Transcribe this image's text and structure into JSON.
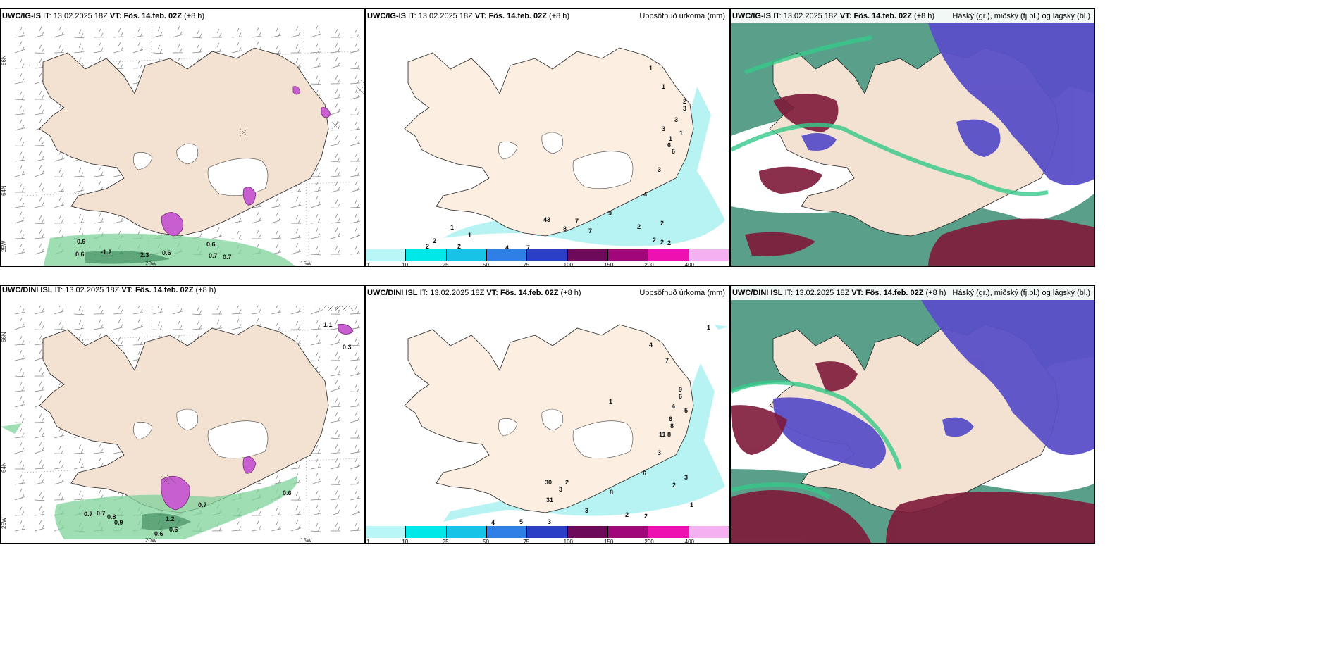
{
  "panels": [
    {
      "id": "p1",
      "model": "UWC/IG-IS",
      "it_prefix": "IT:",
      "it": "13.02.2025 18Z",
      "vt_prefix": "VT:",
      "vt": "Fös. 14.feb. 02Z",
      "lead": "(+8 h)",
      "right": ""
    },
    {
      "id": "p2",
      "model": "UWC/IG-IS",
      "it_prefix": "IT:",
      "it": "13.02.2025 18Z",
      "vt_prefix": "VT:",
      "vt": "Fös. 14.feb. 02Z",
      "lead": "(+8 h)",
      "right": "Uppsöfnuð úrkoma (mm)"
    },
    {
      "id": "p3",
      "model": "UWC/IG-IS",
      "it_prefix": "IT:",
      "it": "13.02.2025 18Z",
      "vt_prefix": "VT:",
      "vt": "Fös. 14.feb. 02Z",
      "lead": "(+8 h)",
      "right": "Háský (gr.), miðský (fj.bl.) og lágský (bl.)"
    },
    {
      "id": "p4",
      "model": "UWC/DINI ISL",
      "it_prefix": "IT:",
      "it": "13.02.2025 18Z",
      "vt_prefix": "VT:",
      "vt": "Fös. 14.feb. 02Z",
      "lead": "(+8 h)",
      "right": ""
    },
    {
      "id": "p5",
      "model": "UWC/DINI ISL",
      "it_prefix": "IT:",
      "it": "13.02.2025 18Z",
      "vt_prefix": "VT:",
      "vt": "Fös. 14.feb. 02Z",
      "lead": "(+8 h)",
      "right": "Uppsöfnuð úrkoma (mm)"
    },
    {
      "id": "p6",
      "model": "UWC/DINI ISL",
      "it_prefix": "IT:",
      "it": "13.02.2025 18Z",
      "vt_prefix": "VT:",
      "vt": "Fös. 14.feb. 02Z",
      "lead": "(+8 h)",
      "right": "Háský (gr.), miðský (fj.bl.) og lágský (bl.)"
    }
  ],
  "axis_labels": {
    "lon_20w": "20W",
    "lon_15w": "15W",
    "lat_66n": "66N",
    "lat_64n": "64N",
    "lat_25w": "25W"
  },
  "colorbar": {
    "labels": [
      "1",
      "10",
      "25",
      "50",
      "75",
      "100",
      "150",
      "200",
      "400"
    ],
    "colors": [
      "#b8f7f7",
      "#00e8e8",
      "#17c3e6",
      "#2f7fe6",
      "#2a3fc6",
      "#6e0a5a",
      "#a0087a",
      "#ee10b0",
      "#f4b0f0"
    ]
  },
  "colors": {
    "land": "#f5e3d3",
    "land_precip": "#fcefe1",
    "green": "#3fb07a",
    "precip_light": "#b7f3f3",
    "purple": "#5a4fc8",
    "maroon": "#7e1a3a",
    "teal": "#5a9f8a"
  },
  "p1_labels": [
    {
      "t": "0.9"
    },
    {
      "t": "0.6"
    },
    {
      "t": "-1.2"
    },
    {
      "t": "2.3"
    },
    {
      "t": "0.6"
    },
    {
      "t": "0.6"
    },
    {
      "t": "0.7"
    },
    {
      "t": "0.7"
    }
  ],
  "p4_labels": [
    {
      "t": "-1.1"
    },
    {
      "t": "0.3"
    },
    {
      "t": "0.6"
    },
    {
      "t": "0.7"
    },
    {
      "t": "0.7"
    },
    {
      "t": "0.7"
    },
    {
      "t": "0.8"
    },
    {
      "t": "0.9"
    },
    {
      "t": "1.2"
    },
    {
      "t": "0.6"
    },
    {
      "t": "0.6"
    }
  ],
  "p2_labels": [
    {
      "t": "1"
    },
    {
      "t": "1"
    },
    {
      "t": "2"
    },
    {
      "t": "3"
    },
    {
      "t": "3"
    },
    {
      "t": "3"
    },
    {
      "t": "1"
    },
    {
      "t": "1"
    },
    {
      "t": "6"
    },
    {
      "t": "6"
    },
    {
      "t": "3"
    },
    {
      "t": "4"
    },
    {
      "t": "9"
    },
    {
      "t": "7"
    },
    {
      "t": "7"
    },
    {
      "t": "8"
    },
    {
      "t": "2"
    },
    {
      "t": "2"
    },
    {
      "t": "2"
    },
    {
      "t": "2"
    },
    {
      "t": "2"
    },
    {
      "t": "43"
    },
    {
      "t": "1"
    },
    {
      "t": "1"
    },
    {
      "t": "2"
    },
    {
      "t": "2"
    },
    {
      "t": "2"
    },
    {
      "t": "4"
    },
    {
      "t": "7"
    }
  ],
  "p5_labels": [
    {
      "t": "1"
    },
    {
      "t": "4"
    },
    {
      "t": "7"
    },
    {
      "t": "9"
    },
    {
      "t": "6"
    },
    {
      "t": "4"
    },
    {
      "t": "5"
    },
    {
      "t": "6"
    },
    {
      "t": "8"
    },
    {
      "t": "11"
    },
    {
      "t": "8"
    },
    {
      "t": "1"
    },
    {
      "t": "3"
    },
    {
      "t": "6"
    },
    {
      "t": "3"
    },
    {
      "t": "2"
    },
    {
      "t": "8"
    },
    {
      "t": "1"
    },
    {
      "t": "2"
    },
    {
      "t": "2"
    },
    {
      "t": "3"
    },
    {
      "t": "2"
    },
    {
      "t": "3"
    },
    {
      "t": "30"
    },
    {
      "t": "31"
    },
    {
      "t": "4"
    },
    {
      "t": "5"
    },
    {
      "t": "3"
    }
  ]
}
